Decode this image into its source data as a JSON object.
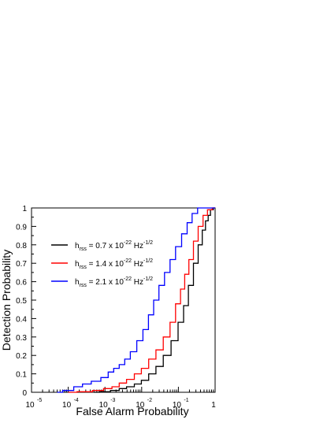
{
  "chart_data": {
    "type": "line",
    "xlabel": "False Alarm Probability",
    "ylabel": "Detection Probability",
    "x_scale": "log",
    "xlim": [
      1e-05,
      1
    ],
    "ylim": [
      0,
      1
    ],
    "grid": false,
    "legend_position": "upper-left",
    "x_ticks": [
      {
        "value": 1e-05,
        "base": "10",
        "exp": "-5"
      },
      {
        "value": 0.0001,
        "base": "10",
        "exp": "-4"
      },
      {
        "value": 0.001,
        "base": "10",
        "exp": "-3"
      },
      {
        "value": 0.01,
        "base": "10",
        "exp": "-2"
      },
      {
        "value": 0.1,
        "base": "10",
        "exp": "-1"
      },
      {
        "value": 1,
        "base": "1",
        "exp": ""
      }
    ],
    "y_ticks": [
      {
        "value": 0,
        "label": "0"
      },
      {
        "value": 0.1,
        "label": "0.1"
      },
      {
        "value": 0.2,
        "label": "0.2"
      },
      {
        "value": 0.3,
        "label": "0.3"
      },
      {
        "value": 0.4,
        "label": "0.4"
      },
      {
        "value": 0.5,
        "label": "0.5"
      },
      {
        "value": 0.6,
        "label": "0.6"
      },
      {
        "value": 0.7,
        "label": "0.7"
      },
      {
        "value": 0.8,
        "label": "0.8"
      },
      {
        "value": 0.9,
        "label": "0.9"
      },
      {
        "value": 1,
        "label": "1"
      }
    ],
    "series": [
      {
        "name": "h_rss = 0.7 x 10^-22 Hz^-1/2",
        "legend": {
          "h": "h",
          "sub": "rss",
          "mid": " = 0.7 x 10",
          "exp1": "-22",
          "unit": " Hz",
          "exp2": "-1/2"
        },
        "color": "#000000",
        "x": [
          0.0005,
          0.001,
          0.002,
          0.003,
          0.005,
          0.008,
          0.012,
          0.02,
          0.03,
          0.05,
          0.08,
          0.12,
          0.16,
          0.22,
          0.3,
          0.4,
          0.5,
          0.6,
          0.7,
          0.8,
          1
        ],
        "y": [
          0,
          0.003,
          0.01,
          0.02,
          0.03,
          0.045,
          0.065,
          0.1,
          0.14,
          0.2,
          0.28,
          0.38,
          0.47,
          0.58,
          0.7,
          0.8,
          0.88,
          0.93,
          0.96,
          0.99,
          1
        ]
      },
      {
        "name": "h_rss = 1.4 x 10^-22 Hz^-1/2",
        "legend": {
          "h": "h",
          "sub": "rss",
          "mid": " = 1.4 x 10",
          "exp1": "-22",
          "unit": " Hz",
          "exp2": "-1/2"
        },
        "color": "#ff0000",
        "x": [
          0.0001,
          0.0003,
          0.0007,
          0.0012,
          0.002,
          0.003,
          0.005,
          0.008,
          0.012,
          0.02,
          0.03,
          0.05,
          0.07,
          0.1,
          0.13,
          0.17,
          0.22,
          0.3,
          0.4,
          0.55,
          0.7,
          1
        ],
        "y": [
          0,
          0.003,
          0.01,
          0.02,
          0.03,
          0.05,
          0.07,
          0.1,
          0.13,
          0.18,
          0.23,
          0.3,
          0.38,
          0.48,
          0.56,
          0.64,
          0.72,
          0.82,
          0.9,
          0.96,
          0.99,
          1
        ]
      },
      {
        "name": "h_rss = 2.1 x 10^-22 Hz^-1/2",
        "legend": {
          "h": "h",
          "sub": "rss",
          "mid": " = 2.1 x 10",
          "exp1": "-22",
          "unit": " Hz",
          "exp2": "-1/2"
        },
        "color": "#0000ff",
        "x": [
          5e-05,
          0.0001,
          0.0002,
          0.0003,
          0.0006,
          0.001,
          0.0015,
          0.002,
          0.003,
          0.004,
          0.006,
          0.009,
          0.013,
          0.018,
          0.025,
          0.035,
          0.05,
          0.07,
          0.1,
          0.15,
          0.2,
          0.28,
          0.4,
          1
        ],
        "y": [
          0,
          0.01,
          0.03,
          0.045,
          0.06,
          0.08,
          0.11,
          0.13,
          0.15,
          0.18,
          0.22,
          0.28,
          0.34,
          0.42,
          0.5,
          0.58,
          0.65,
          0.72,
          0.79,
          0.86,
          0.92,
          0.97,
          1,
          1
        ]
      }
    ]
  }
}
